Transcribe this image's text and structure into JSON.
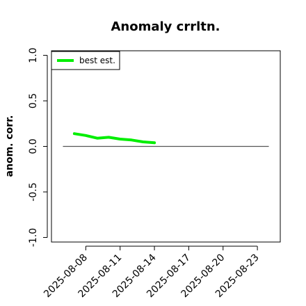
{
  "chart_data": {
    "type": "line",
    "title": "Anomaly crrltn.",
    "xlabel": "",
    "ylabel": "anom. corr.",
    "ylim": [
      -1.05,
      1.05
    ],
    "xlim": [
      "2025-08-05",
      "2025-08-25"
    ],
    "y_ticks": [
      -1.0,
      -0.5,
      0.0,
      0.5,
      1.0
    ],
    "y_tick_labels": [
      "-1.0",
      "-0.5",
      "0.0",
      "0.5",
      "1.0"
    ],
    "x_ticks": [
      "2025-08-08",
      "2025-08-11",
      "2025-08-14",
      "2025-08-17",
      "2025-08-20",
      "2025-08-23"
    ],
    "x_tick_labels": [
      "2025-08-08",
      "2025-08-11",
      "2025-08-14",
      "2025-08-17",
      "2025-08-20",
      "2025-08-23"
    ],
    "grid": false,
    "legend_position": "top-left",
    "reference_line": {
      "y": 0.0,
      "x_from": "2025-08-06",
      "x_to": "2025-08-24",
      "color": "#555555"
    },
    "series": [
      {
        "name": "best est.",
        "color": "#00ee00",
        "x": [
          "2025-08-07",
          "2025-08-08",
          "2025-08-09",
          "2025-08-10",
          "2025-08-11",
          "2025-08-12",
          "2025-08-13",
          "2025-08-14"
        ],
        "values": [
          0.14,
          0.12,
          0.09,
          0.1,
          0.08,
          0.07,
          0.05,
          0.04
        ]
      }
    ]
  }
}
